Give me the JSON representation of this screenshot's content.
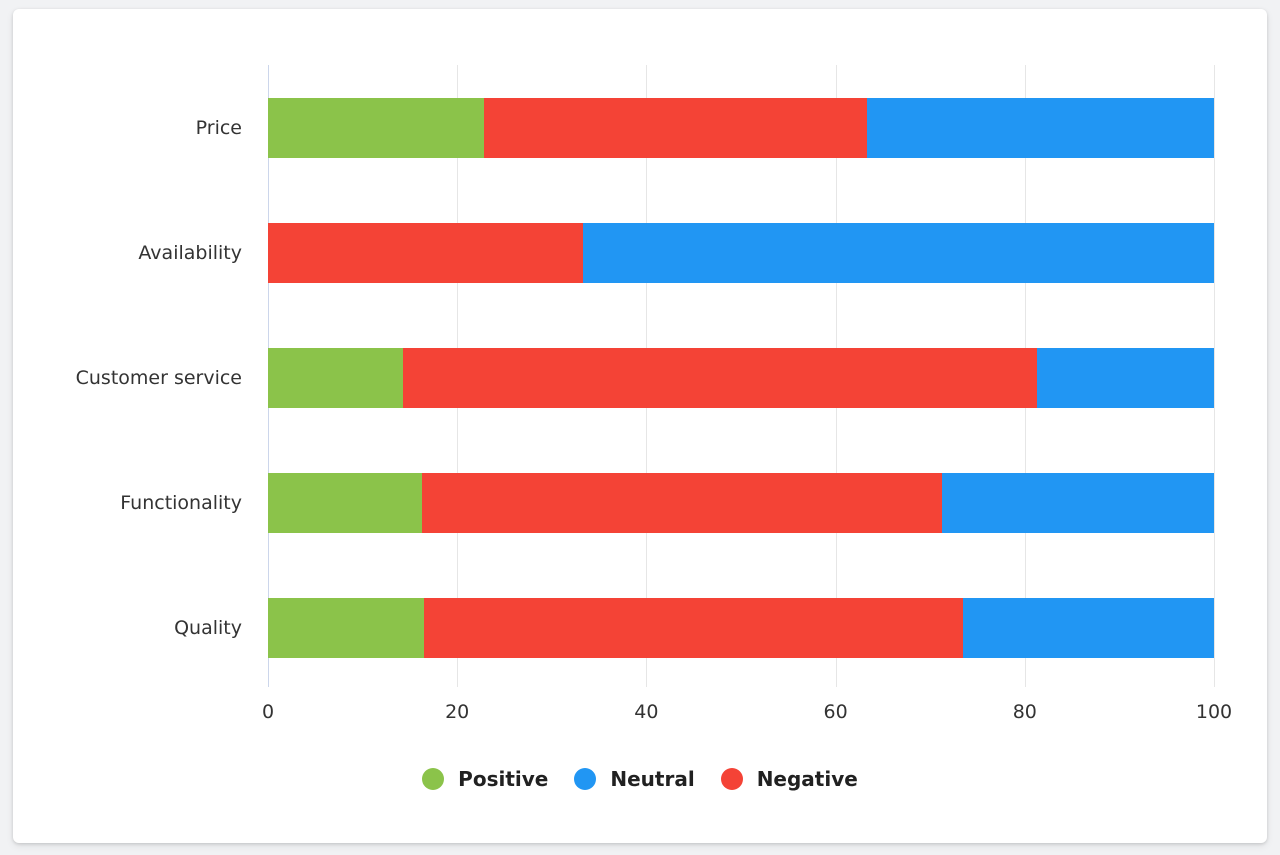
{
  "styles": {
    "page_bg": "#f1f2f4",
    "card_bg": "#ffffff",
    "axis_line_color": "#ccd6eb",
    "grid_color": "#e6e6e6",
    "tick_label_color": "#333333",
    "category_label_color": "#333333",
    "legend_text_color": "#212121"
  },
  "chart_data": {
    "type": "bar",
    "orientation": "horizontal",
    "stacked": true,
    "title": "",
    "xlabel": "",
    "ylabel": "",
    "grid": true,
    "categories": [
      "Price",
      "Availability",
      "Customer service",
      "Functionality",
      "Quality"
    ],
    "series": [
      {
        "name": "Positive",
        "color": "#8BC34A",
        "values": [
          22.8,
          0,
          14.3,
          16.3,
          16.5
        ]
      },
      {
        "name": "Negative",
        "color": "#F44336",
        "values": [
          40.5,
          33.3,
          67.0,
          55.0,
          57.0
        ]
      },
      {
        "name": "Neutral",
        "color": "#2196F3",
        "values": [
          36.7,
          66.7,
          18.7,
          28.7,
          26.5
        ]
      }
    ],
    "stack_order": [
      "Positive",
      "Negative",
      "Neutral"
    ],
    "x_axis": {
      "min": 0,
      "max": 100,
      "ticks": [
        0,
        20,
        40,
        60,
        80,
        100
      ]
    },
    "legend": {
      "position": "bottom",
      "entries": [
        {
          "label": "Positive",
          "color": "#8BC34A"
        },
        {
          "label": "Neutral",
          "color": "#2196F3"
        },
        {
          "label": "Negative",
          "color": "#F44336"
        }
      ]
    }
  }
}
